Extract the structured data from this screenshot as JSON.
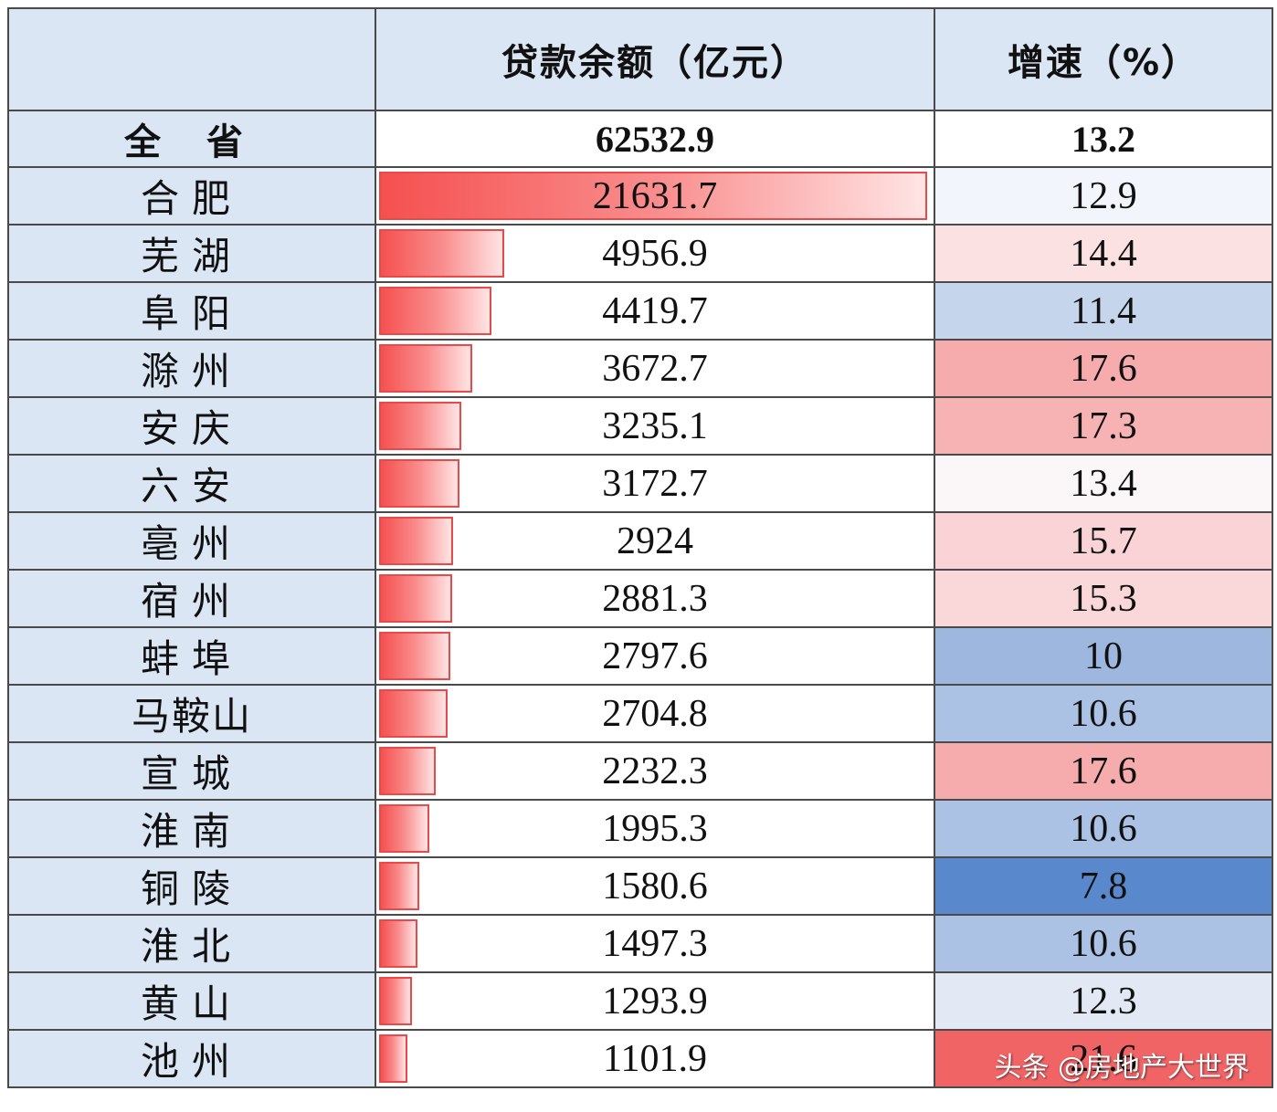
{
  "header": {
    "corner": "",
    "loan_label": "贷款余额（亿元）",
    "growth_label": "增速（%）"
  },
  "total": {
    "name": "全 省",
    "loan": "62532.9",
    "growth": "13.2"
  },
  "rows": [
    {
      "name": "合肥",
      "loan": 21631.7,
      "growth": 12.9,
      "growth_color": "#f2f5fb"
    },
    {
      "name": "芜湖",
      "loan": 4956.9,
      "growth": 14.4,
      "growth_color": "#fbe1e2"
    },
    {
      "name": "阜阳",
      "loan": 4419.7,
      "growth": 11.4,
      "growth_color": "#c5d5ec"
    },
    {
      "name": "滁州",
      "loan": 3672.7,
      "growth": 17.6,
      "growth_color": "#f6abad"
    },
    {
      "name": "安庆",
      "loan": 3235.1,
      "growth": 17.3,
      "growth_color": "#f7b2b4"
    },
    {
      "name": "六安",
      "loan": 3172.7,
      "growth": 13.4,
      "growth_color": "#fbf7f9"
    },
    {
      "name": "亳州",
      "loan": 2924,
      "growth": 15.7,
      "growth_color": "#f9d3d5"
    },
    {
      "name": "宿州",
      "loan": 2881.3,
      "growth": 15.3,
      "growth_color": "#fad8da"
    },
    {
      "name": "蚌埠",
      "loan": 2797.6,
      "growth": 10,
      "growth_color": "#9db7df"
    },
    {
      "name": "马鞍山",
      "loan": 2704.8,
      "growth": 10.6,
      "growth_color": "#acc2e4"
    },
    {
      "name": "宣城",
      "loan": 2232.3,
      "growth": 17.6,
      "growth_color": "#f6abad"
    },
    {
      "name": "淮南",
      "loan": 1995.3,
      "growth": 10.6,
      "growth_color": "#acc2e4"
    },
    {
      "name": "铜陵",
      "loan": 1580.6,
      "growth": 7.8,
      "growth_color": "#5a88cc"
    },
    {
      "name": "淮北",
      "loan": 1497.3,
      "growth": 10.6,
      "growth_color": "#acc2e4"
    },
    {
      "name": "黄山",
      "loan": 1293.9,
      "growth": 12.3,
      "growth_color": "#e2e9f5"
    },
    {
      "name": "池州",
      "loan": 1101.9,
      "growth": 21.6,
      "growth_color": "#f06466"
    }
  ],
  "bar_max": 21631.7,
  "watermark": "头条 @房地产大世界"
}
